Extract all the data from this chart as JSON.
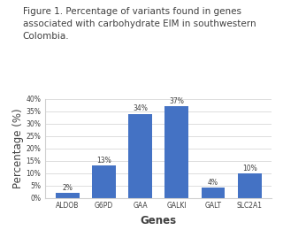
{
  "title_lines": [
    "Figure 1. Percentage of variants found in genes",
    "associated with carbohydrate EIM in southwestern",
    "Colombia."
  ],
  "categories": [
    "ALDOB",
    "G6PD",
    "GAA",
    "GALKI",
    "GALT",
    "SLC2A1"
  ],
  "values": [
    2,
    13,
    34,
    37,
    4,
    10
  ],
  "labels": [
    "2%",
    "13%",
    "34%",
    "37%",
    "4%",
    "10%"
  ],
  "bar_color": "#4472C4",
  "xlabel": "Genes",
  "ylabel": "Percentage (%)",
  "ylim": [
    0,
    40
  ],
  "yticks": [
    0,
    5,
    10,
    15,
    20,
    25,
    30,
    35,
    40
  ],
  "ytick_labels": [
    "0%",
    "5%",
    "10%",
    "15%",
    "20%",
    "25%",
    "30%",
    "35%",
    "40%"
  ],
  "title_fontsize": 7.5,
  "axis_label_fontsize": 8.5,
  "tick_fontsize": 5.5,
  "bar_label_fontsize": 5.5,
  "text_color": "#404040",
  "grid_color": "#d0d0d0",
  "background_color": "#ffffff"
}
